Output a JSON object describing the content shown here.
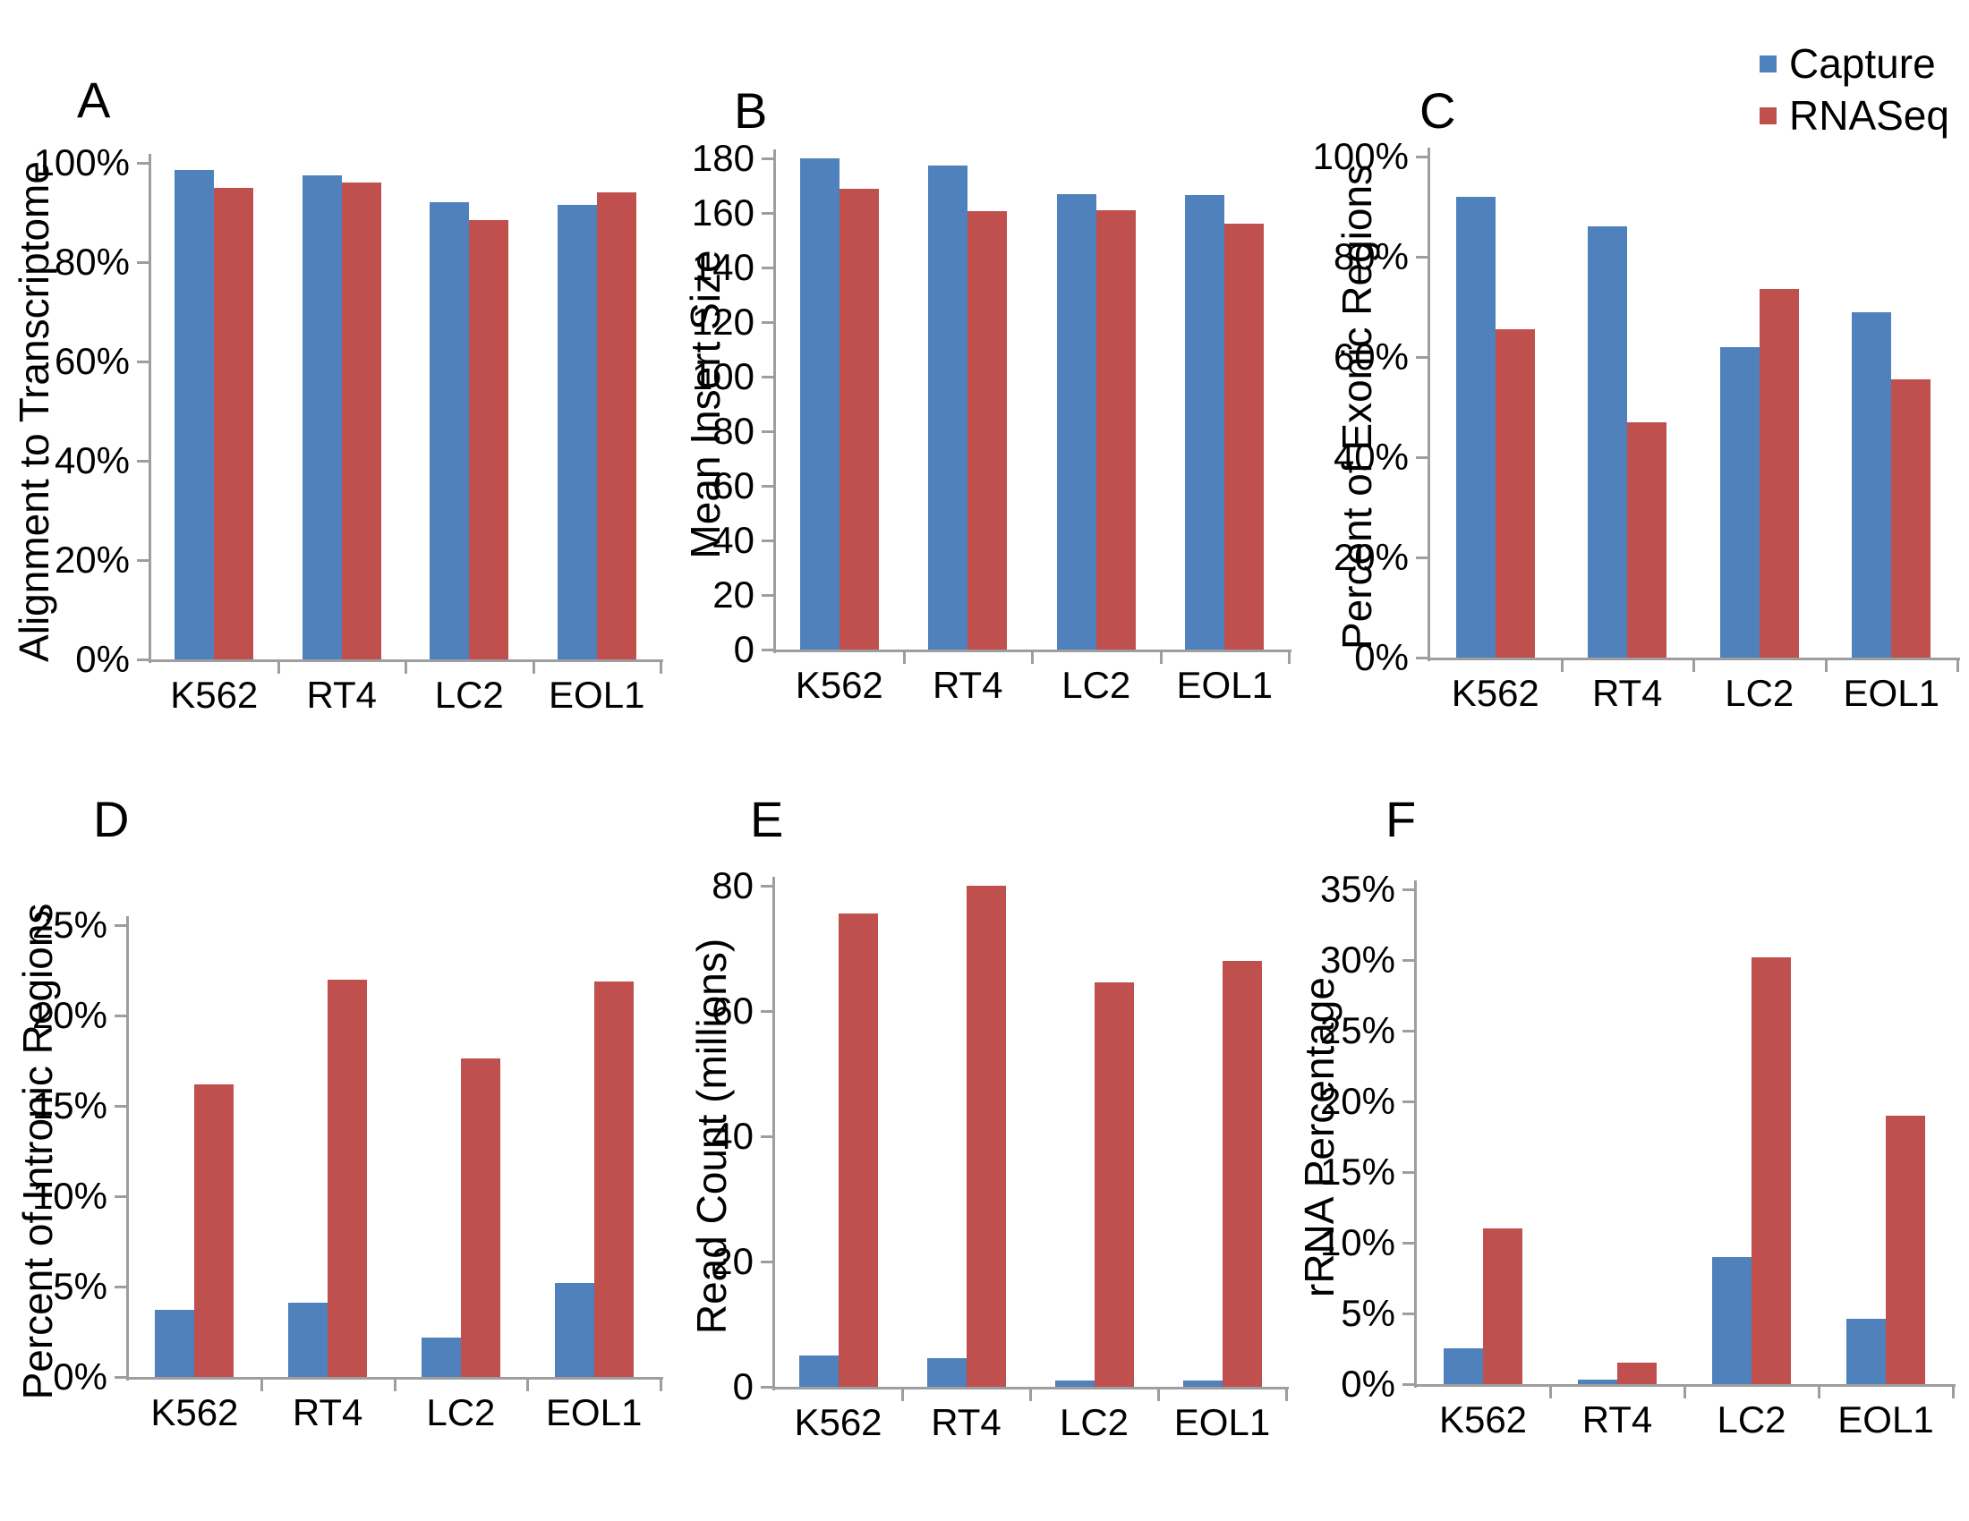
{
  "figure": {
    "legend": {
      "items": [
        {
          "label": "Capture",
          "color": "#4f81bd"
        },
        {
          "label": "RNASeq",
          "color": "#c0504d"
        }
      ],
      "position": "top-right"
    },
    "categories": [
      "K562",
      "RT4",
      "LC2",
      "EOL1"
    ]
  },
  "colors": {
    "capture": "#4f81bd",
    "rnaseq": "#c0504d",
    "axis": "#9e9e9e",
    "text": "#000000",
    "background": "#ffffff"
  },
  "chart_data": [
    {
      "panel": "A",
      "type": "bar",
      "ylabel": "Alignment to Transcriptome",
      "tick_suffix": "%",
      "ylim": [
        0,
        100
      ],
      "ystep": 20,
      "grid": false,
      "categories": [
        "K562",
        "RT4",
        "LC2",
        "EOL1"
      ],
      "series": [
        {
          "name": "Capture",
          "values": [
            98.5,
            97.5,
            92,
            91.5
          ]
        },
        {
          "name": "RNASeq",
          "values": [
            95,
            96,
            88.5,
            94
          ]
        }
      ]
    },
    {
      "panel": "B",
      "type": "bar",
      "ylabel": "Mean Insert Size",
      "tick_suffix": "",
      "ylim": [
        0,
        180
      ],
      "ystep": 20,
      "grid": false,
      "categories": [
        "K562",
        "RT4",
        "LC2",
        "EOL1"
      ],
      "series": [
        {
          "name": "Capture",
          "values": [
            180,
            177.5,
            167,
            166.5
          ]
        },
        {
          "name": "RNASeq",
          "values": [
            169,
            160.5,
            161,
            156
          ]
        }
      ]
    },
    {
      "panel": "C",
      "type": "bar",
      "ylabel": "Percent of Exonic Regions",
      "tick_suffix": "%",
      "ylim": [
        0,
        100
      ],
      "ystep": 20,
      "grid": false,
      "categories": [
        "K562",
        "RT4",
        "LC2",
        "EOL1"
      ],
      "series": [
        {
          "name": "Capture",
          "values": [
            92,
            86,
            62,
            69
          ]
        },
        {
          "name": "RNASeq",
          "values": [
            65.5,
            47,
            73.5,
            55.5
          ]
        }
      ]
    },
    {
      "panel": "D",
      "type": "bar",
      "ylabel": "Percent of Intronic Regions",
      "tick_suffix": "%",
      "ylim": [
        0,
        25
      ],
      "ystep": 5,
      "grid": false,
      "categories": [
        "K562",
        "RT4",
        "LC2",
        "EOL1"
      ],
      "series": [
        {
          "name": "Capture",
          "values": [
            3.7,
            4.1,
            2.2,
            5.2
          ]
        },
        {
          "name": "RNASeq",
          "values": [
            16.2,
            22,
            17.6,
            21.9
          ]
        }
      ]
    },
    {
      "panel": "E",
      "type": "bar",
      "ylabel": "Read Count (millions)",
      "tick_suffix": "",
      "ylim": [
        0,
        80
      ],
      "ystep": 20,
      "grid": false,
      "categories": [
        "K562",
        "RT4",
        "LC2",
        "EOL1"
      ],
      "series": [
        {
          "name": "Capture",
          "values": [
            5,
            4.5,
            1,
            1
          ]
        },
        {
          "name": "RNASeq",
          "values": [
            75.5,
            80,
            64.5,
            68
          ]
        }
      ]
    },
    {
      "panel": "F",
      "type": "bar",
      "ylabel": "rRNA Percentage",
      "tick_suffix": "%",
      "ylim": [
        0,
        35
      ],
      "ystep": 5,
      "grid": false,
      "categories": [
        "K562",
        "RT4",
        "LC2",
        "EOL1"
      ],
      "series": [
        {
          "name": "Capture",
          "values": [
            2.5,
            0.3,
            9,
            4.6
          ]
        },
        {
          "name": "RNASeq",
          "values": [
            11,
            1.5,
            30.2,
            19
          ]
        }
      ]
    }
  ]
}
